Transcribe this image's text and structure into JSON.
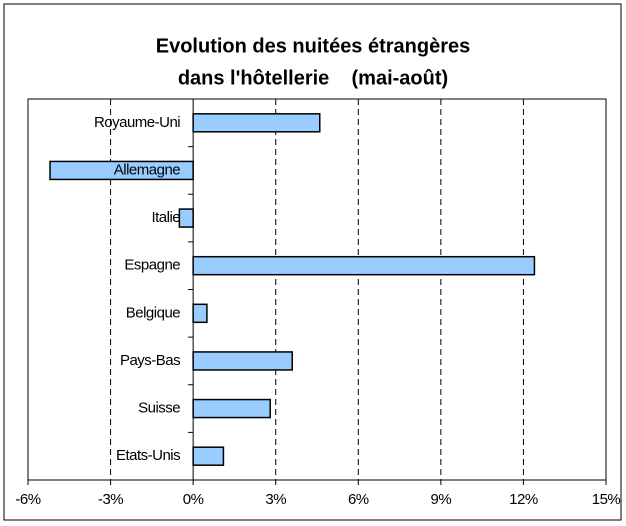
{
  "chart_data": {
    "type": "bar",
    "orientation": "horizontal",
    "title": [
      "Evolution des nuitées étrangères",
      "dans l'hôtellerie    (mai-août)"
    ],
    "categories": [
      "Royaume-Uni",
      "Allemagne",
      "Italie",
      "Espagne",
      "Belgique",
      "Pays-Bas",
      "Suisse",
      "Etats-Unis"
    ],
    "values": [
      4.6,
      -5.2,
      -0.5,
      12.4,
      0.5,
      3.6,
      2.8,
      1.1
    ],
    "color": "#99ccff",
    "xlim": [
      -6,
      15
    ],
    "xticks": [
      {
        "value": -6,
        "label": "-6%"
      },
      {
        "value": -3,
        "label": "-3%"
      },
      {
        "value": 0,
        "label": "0%"
      },
      {
        "value": 3,
        "label": "3%"
      },
      {
        "value": 6,
        "label": "6%"
      },
      {
        "value": 9,
        "label": "9%"
      },
      {
        "value": 12,
        "label": "12%"
      },
      {
        "value": 15,
        "label": "15%"
      }
    ],
    "grid": true
  }
}
